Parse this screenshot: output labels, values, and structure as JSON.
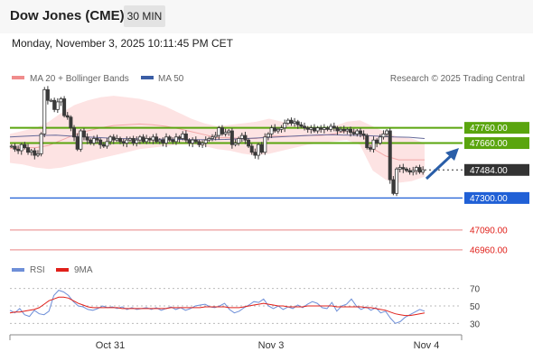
{
  "header": {
    "title": "Dow Jones (CME)",
    "timeframe": "30 MIN"
  },
  "datetime": "Monday, November 3, 2025 10:11:45 PM CET",
  "legend": {
    "bb_label": "MA 20 + Bollinger Bands",
    "ma50_label": "MA 50",
    "copyright": "Research © 2025 Trading Central"
  },
  "rsi_legend": {
    "rsi_label": "RSI",
    "ma_label": "9MA"
  },
  "colors": {
    "green": "#5aa50e",
    "blue": "#2060d6",
    "red_line": "#e98383",
    "band_fill": "#fde3e3",
    "ma50": "#666a9a",
    "candle": "#3a3a3a",
    "current": "#333333"
  },
  "chart_data": {
    "type": "candlestick",
    "title": "Dow Jones (CME)",
    "x_ticks": [
      "Oct 31",
      "Nov 3",
      "Nov 4"
    ],
    "ylim": [
      46900,
      48030
    ],
    "levels": [
      {
        "value": 47760.0,
        "label": "47760.00",
        "kind": "resistance"
      },
      {
        "value": 47660.0,
        "label": "47660.00",
        "kind": "resistance"
      },
      {
        "value": 47484.0,
        "label": "47484.00",
        "kind": "current"
      },
      {
        "value": 47300.0,
        "label": "47300.00",
        "kind": "support"
      },
      {
        "value": 47090.0,
        "label": "47090.00",
        "kind": "target"
      },
      {
        "value": 46960.0,
        "label": "46960.00",
        "kind": "target"
      }
    ],
    "candles_close": [
      47640,
      47620,
      47610,
      47650,
      47630,
      47600,
      47610,
      47580,
      47590,
      47720,
      48010,
      47940,
      47940,
      47880,
      47930,
      47950,
      47840,
      47830,
      47760,
      47700,
      47620,
      47740,
      47700,
      47680,
      47660,
      47690,
      47680,
      47650,
      47640,
      47670,
      47700,
      47680,
      47690,
      47670,
      47660,
      47680,
      47690,
      47660,
      47680,
      47700,
      47670,
      47690,
      47680,
      47700,
      47670,
      47680,
      47660,
      47700,
      47680,
      47670,
      47700,
      47690,
      47720,
      47680,
      47660,
      47680,
      47670,
      47650,
      47660,
      47680,
      47690,
      47700,
      47710,
      47760,
      47720,
      47730,
      47740,
      47650,
      47660,
      47690,
      47710,
      47680,
      47640,
      47600,
      47580,
      47650,
      47600,
      47700,
      47720,
      47760,
      47740,
      47750,
      47760,
      47790,
      47810,
      47790,
      47800,
      47780,
      47770,
      47760,
      47750,
      47760,
      47740,
      47760,
      47750,
      47760,
      47750,
      47770,
      47760,
      47740,
      47750,
      47740,
      47750,
      47730,
      47720,
      47740,
      47720,
      47710,
      47630,
      47620,
      47680,
      47660,
      47700,
      47720,
      47740,
      47420,
      47330,
      47490,
      47500,
      47490,
      47480,
      47470,
      47480,
      47500,
      47470,
      47484
    ],
    "bb_upper": [
      47720,
      47740,
      47760,
      47800,
      47860,
      47910,
      47940,
      47960,
      47970,
      47960,
      47950,
      47930,
      47900,
      47860,
      47820,
      47790,
      47770,
      47780,
      47790,
      47800,
      47820,
      47800,
      47780,
      47770,
      47760,
      47770,
      47800,
      47810,
      47770,
      47730,
      47700,
      47690,
      47660
    ],
    "bb_lower": [
      47530,
      47520,
      47500,
      47490,
      47500,
      47520,
      47540,
      47560,
      47580,
      47600,
      47620,
      47630,
      47640,
      47650,
      47650,
      47640,
      47620,
      47610,
      47590,
      47580,
      47590,
      47610,
      47630,
      47650,
      47660,
      47670,
      47680,
      47650,
      47480,
      47420,
      47400,
      47410,
      47440
    ],
    "ma50": [
      47700,
      47705,
      47710,
      47712,
      47705,
      47700,
      47695,
      47690,
      47688,
      47686,
      47685,
      47684,
      47683,
      47682,
      47684,
      47688,
      47693,
      47698,
      47703,
      47708,
      47713,
      47715,
      47712,
      47710,
      47705,
      47700,
      47698,
      47690
    ],
    "rsi": {
      "ylim": [
        20,
        80
      ],
      "ticks": [
        70,
        50,
        30
      ],
      "rsi_values": [
        45,
        42,
        47,
        40,
        38,
        45,
        41,
        40,
        44,
        62,
        68,
        66,
        62,
        55,
        50,
        49,
        46,
        45,
        47,
        50,
        48,
        49,
        47,
        49,
        46,
        48,
        46,
        47,
        48,
        46,
        48,
        45,
        47,
        49,
        46,
        48,
        45,
        47,
        50,
        51,
        52,
        49,
        48,
        50,
        53,
        46,
        42,
        44,
        48,
        51,
        55,
        54,
        58,
        50,
        47,
        50,
        46,
        49,
        47,
        51,
        48,
        52,
        55,
        53,
        48,
        47,
        54,
        44,
        50,
        52,
        58,
        50,
        46,
        49,
        45,
        48,
        42,
        44,
        36,
        30,
        32,
        37,
        40,
        43,
        46,
        44
      ],
      "ma_values": [
        42,
        43,
        43,
        44,
        45,
        46,
        48,
        52,
        56,
        58,
        60,
        60,
        59,
        56,
        53,
        51,
        49,
        48,
        48,
        48,
        48,
        48,
        48,
        47,
        47,
        47,
        47,
        47,
        47,
        47,
        47,
        47,
        47,
        48,
        48,
        48,
        48,
        48,
        48,
        48,
        49,
        49,
        49,
        49,
        49,
        48,
        48,
        48,
        49,
        50,
        51,
        52,
        53,
        52,
        51,
        50,
        50,
        49,
        49,
        49,
        49,
        50,
        50,
        50,
        50,
        50,
        50,
        49,
        49,
        49,
        49,
        49,
        49,
        48,
        48,
        47,
        46,
        45,
        43,
        41,
        40,
        39,
        39,
        40,
        41,
        42
      ]
    }
  }
}
